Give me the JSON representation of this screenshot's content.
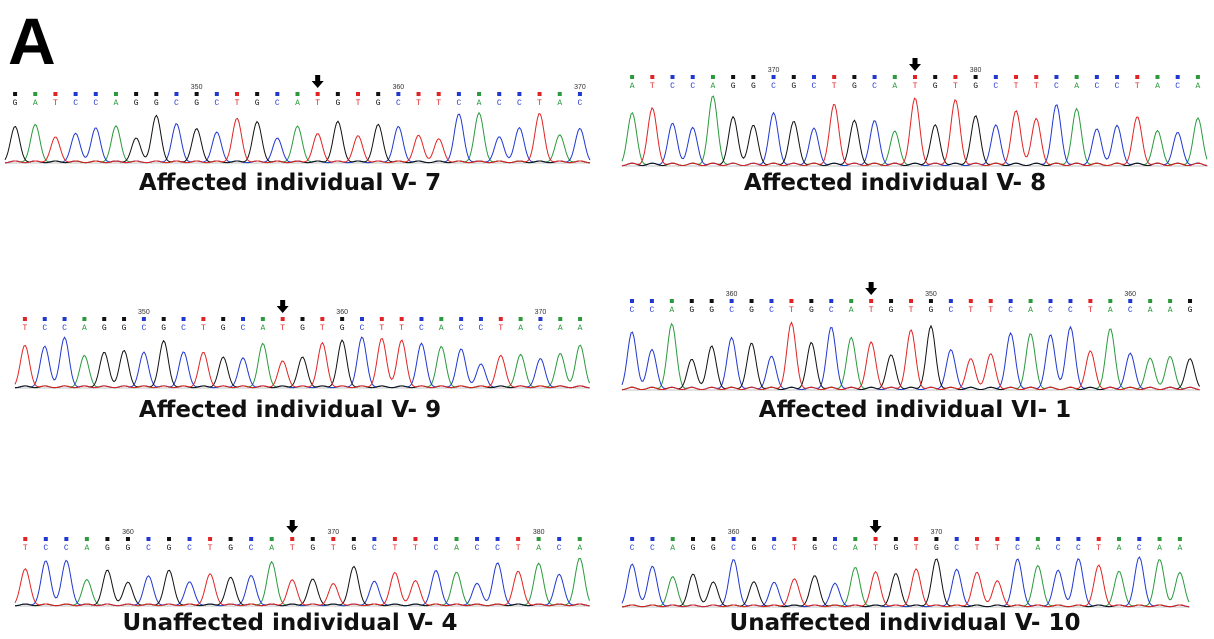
{
  "panel_letter": "A",
  "panels": [
    {
      "label": "Affected individual V- 7",
      "sequence": [
        "G",
        "A",
        "T",
        "C",
        "C",
        "A",
        "G",
        "G",
        "C",
        "G",
        "C",
        "T",
        "G",
        "C",
        "A",
        "T",
        "G",
        "T",
        "G",
        "C",
        "T",
        "T",
        "C",
        "A",
        "C",
        "C",
        "T",
        "A",
        "C"
      ],
      "positions": [
        350,
        360,
        370
      ]
    },
    {
      "label": "Affected individual V- 8",
      "sequence": [
        "A",
        "T",
        "C",
        "C",
        "A",
        "G",
        "G",
        "C",
        "G",
        "C",
        "T",
        "G",
        "C",
        "A",
        "T",
        "G",
        "T",
        "G",
        "C",
        "T",
        "T",
        "C",
        "A",
        "C",
        "C",
        "T",
        "A",
        "C",
        "A"
      ],
      "positions": [
        370,
        380
      ]
    },
    {
      "label": "Affected individual V- 9",
      "sequence": [
        "T",
        "C",
        "C",
        "A",
        "G",
        "G",
        "C",
        "G",
        "C",
        "T",
        "G",
        "C",
        "A",
        "T",
        "G",
        "T",
        "G",
        "C",
        "T",
        "T",
        "C",
        "A",
        "C",
        "C",
        "T",
        "A",
        "C",
        "A",
        "A"
      ],
      "positions": [
        350,
        360,
        370
      ]
    },
    {
      "label": "Affected individual VI- 1",
      "sequence": [
        "C",
        "C",
        "A",
        "G",
        "G",
        "C",
        "G",
        "C",
        "T",
        "G",
        "C",
        "A",
        "T",
        "G",
        "T",
        "G",
        "C",
        "T",
        "T",
        "C",
        "A",
        "C",
        "C",
        "T",
        "A",
        "C",
        "A",
        "A",
        "G"
      ],
      "positions": [
        360,
        350,
        360
      ]
    },
    {
      "label": "Unaffected individual V- 4",
      "sequence": [
        "T",
        "C",
        "C",
        "A",
        "G",
        "G",
        "C",
        "G",
        "C",
        "T",
        "G",
        "C",
        "A",
        "T",
        "G",
        "T",
        "G",
        "C",
        "T",
        "T",
        "C",
        "A",
        "C",
        "C",
        "T",
        "A",
        "C",
        "A"
      ],
      "positions": [
        360,
        370,
        380
      ]
    },
    {
      "label": "Unaffected individual V- 10",
      "sequence": [
        "C",
        "C",
        "A",
        "G",
        "G",
        "C",
        "G",
        "C",
        "T",
        "G",
        "C",
        "A",
        "T",
        "G",
        "T",
        "G",
        "C",
        "T",
        "T",
        "C",
        "A",
        "C",
        "C",
        "T",
        "A",
        "C",
        "A",
        "A"
      ],
      "positions": [
        360,
        370
      ]
    }
  ]
}
